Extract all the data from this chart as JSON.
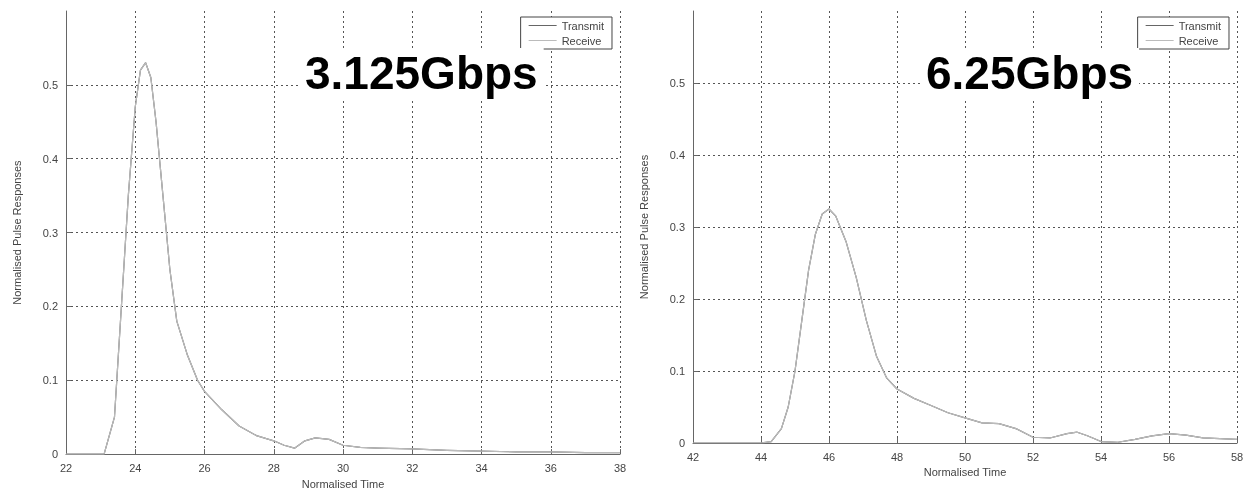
{
  "chart_data": [
    {
      "type": "line",
      "xlabel": "Normalised Time",
      "ylabel": "Normalised Pulse Responses",
      "annotations": [
        "3.125Gbps"
      ],
      "xlim": [
        22,
        38
      ],
      "xticks": [
        22,
        24,
        26,
        28,
        30,
        32,
        34,
        36,
        38
      ],
      "ylim": [
        0,
        0.6
      ],
      "yticks": [
        0,
        0.1,
        0.2,
        0.3,
        0.4,
        0.5
      ],
      "grid": true,
      "legend": "top right",
      "line_style": "solid",
      "x": [
        22,
        23,
        23.1,
        23.4,
        23.6,
        23.8,
        24.0,
        24.15,
        24.3,
        24.45,
        24.6,
        24.8,
        25.0,
        25.2,
        25.5,
        25.8,
        26,
        26.5,
        27,
        27.5,
        28,
        28.3,
        28.6,
        28.9,
        29.2,
        29.6,
        30,
        30.5,
        31,
        32,
        33,
        34,
        35,
        36,
        37,
        38
      ],
      "series": [
        {
          "name": "Transmit",
          "color": "#666666",
          "values": [
            0,
            0,
            0,
            0.05,
            0.2,
            0.35,
            0.47,
            0.52,
            0.53,
            0.51,
            0.45,
            0.35,
            0.25,
            0.18,
            0.135,
            0.1,
            0.085,
            0.06,
            0.038,
            0.025,
            0.018,
            0.012,
            0.008,
            0.018,
            0.022,
            0.02,
            0.012,
            0.009,
            0.008,
            0.007,
            0.005,
            0.004,
            0.003,
            0.003,
            0.002,
            0.002
          ]
        },
        {
          "name": "Receive",
          "color": "#bbbbbb",
          "values": [
            0,
            0,
            0,
            0.05,
            0.2,
            0.35,
            0.47,
            0.52,
            0.53,
            0.51,
            0.45,
            0.35,
            0.25,
            0.18,
            0.135,
            0.1,
            0.085,
            0.06,
            0.038,
            0.025,
            0.018,
            0.012,
            0.008,
            0.018,
            0.022,
            0.02,
            0.012,
            0.009,
            0.008,
            0.007,
            0.005,
            0.004,
            0.003,
            0.003,
            0.002,
            0.002
          ]
        }
      ]
    },
    {
      "type": "line",
      "xlabel": "Normalised Time",
      "ylabel": "Normalised Pulse Responses",
      "annotations": [
        "6.25Gbps"
      ],
      "xlim": [
        42,
        58
      ],
      "xticks": [
        42,
        44,
        46,
        48,
        50,
        52,
        54,
        56,
        58
      ],
      "ylim": [
        0,
        0.6
      ],
      "yticks": [
        0,
        0.1,
        0.2,
        0.3,
        0.4,
        0.5
      ],
      "grid": true,
      "legend": "top right",
      "line_style": "solid",
      "x": [
        42,
        44,
        44.3,
        44.6,
        44.8,
        45.0,
        45.2,
        45.4,
        45.6,
        45.8,
        46.0,
        46.2,
        46.5,
        46.8,
        47.1,
        47.4,
        47.7,
        48,
        48.5,
        49,
        49.5,
        50,
        50.5,
        51,
        51.5,
        52,
        52.5,
        53,
        53.3,
        53.6,
        54,
        54.5,
        55,
        55.5,
        56,
        56.5,
        57,
        58
      ],
      "series": [
        {
          "name": "Transmit",
          "color": "#666666",
          "values": [
            0,
            0,
            0.002,
            0.02,
            0.05,
            0.1,
            0.17,
            0.24,
            0.29,
            0.318,
            0.325,
            0.315,
            0.28,
            0.23,
            0.17,
            0.12,
            0.09,
            0.075,
            0.062,
            0.052,
            0.042,
            0.035,
            0.028,
            0.027,
            0.02,
            0.008,
            0.007,
            0.013,
            0.015,
            0.01,
            0.002,
            0.001,
            0.005,
            0.01,
            0.013,
            0.011,
            0.007,
            0.005
          ]
        },
        {
          "name": "Receive",
          "color": "#bbbbbb",
          "values": [
            0,
            0,
            0.002,
            0.02,
            0.05,
            0.1,
            0.17,
            0.24,
            0.29,
            0.318,
            0.325,
            0.315,
            0.28,
            0.23,
            0.17,
            0.12,
            0.09,
            0.075,
            0.062,
            0.052,
            0.042,
            0.035,
            0.028,
            0.027,
            0.02,
            0.008,
            0.007,
            0.013,
            0.015,
            0.01,
            0.002,
            0.001,
            0.005,
            0.01,
            0.013,
            0.011,
            0.007,
            0.005
          ]
        }
      ]
    }
  ]
}
